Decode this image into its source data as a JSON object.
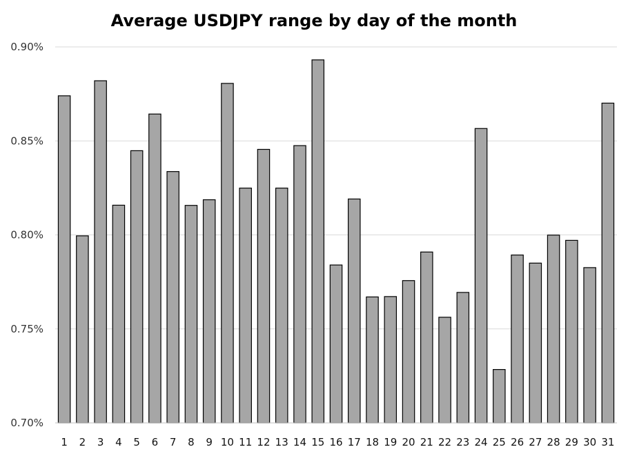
{
  "chart_data": {
    "type": "bar",
    "title": "Average USDJPY range by day of the month",
    "xlabel": "",
    "ylabel": "",
    "categories": [
      "1",
      "2",
      "3",
      "4",
      "5",
      "6",
      "7",
      "8",
      "9",
      "10",
      "11",
      "12",
      "13",
      "14",
      "15",
      "16",
      "17",
      "18",
      "19",
      "20",
      "21",
      "22",
      "23",
      "24",
      "25",
      "26",
      "27",
      "28",
      "29",
      "30",
      "31"
    ],
    "values": [
      0.874,
      0.7995,
      0.882,
      0.8158,
      0.8448,
      0.8643,
      0.8337,
      0.8157,
      0.8187,
      0.8806,
      0.8249,
      0.8455,
      0.8249,
      0.8475,
      0.8931,
      0.784,
      0.8191,
      0.767,
      0.7672,
      0.7757,
      0.7909,
      0.7562,
      0.7694,
      0.8566,
      0.7284,
      0.7893,
      0.785,
      0.7999,
      0.7971,
      0.7826,
      0.8701
    ],
    "ylim": [
      0.7,
      0.9
    ],
    "yticks": [
      0.7,
      0.75,
      0.8,
      0.85,
      0.9
    ],
    "ytick_labels": [
      "0.70%",
      "0.75%",
      "0.80%",
      "0.85%",
      "0.90%"
    ],
    "grid": true,
    "legend": "none",
    "colors": {
      "bar_fill": "#a6a6a6",
      "bar_stroke": "#000000",
      "grid": "#d9d9d9"
    }
  }
}
